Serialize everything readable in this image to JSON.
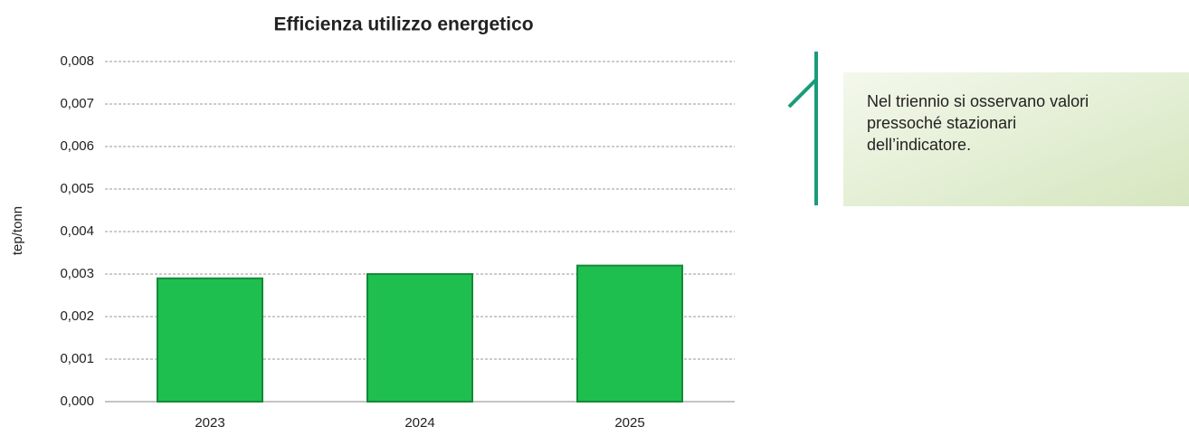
{
  "chart_data": {
    "type": "bar",
    "title": "Efficienza utilizzo energetico",
    "y_label": "tep/tonn",
    "categories": [
      "2023",
      "2024",
      "2025"
    ],
    "values": [
      0.0029,
      0.003,
      0.0032
    ],
    "color": "#1fbf4f",
    "ylim": [
      0,
      0.008
    ],
    "yticks": [
      {
        "value": 0,
        "label": "0,000"
      },
      {
        "value": 0.001,
        "label": "0,001"
      },
      {
        "value": 0.002,
        "label": "0,002"
      },
      {
        "value": 0.003,
        "label": "0,003"
      },
      {
        "value": 0.004,
        "label": "0,004"
      },
      {
        "value": 0.005,
        "label": "0,005"
      },
      {
        "value": 0.006,
        "label": "0,006"
      },
      {
        "value": 0.007,
        "label": "0,007"
      },
      {
        "value": 0.008,
        "label": "0,008"
      }
    ],
    "grid": true,
    "annotation": [
      "Nel triennio si osservano valori",
      "pressoché stazionari",
      "dell’indicatore."
    ]
  }
}
